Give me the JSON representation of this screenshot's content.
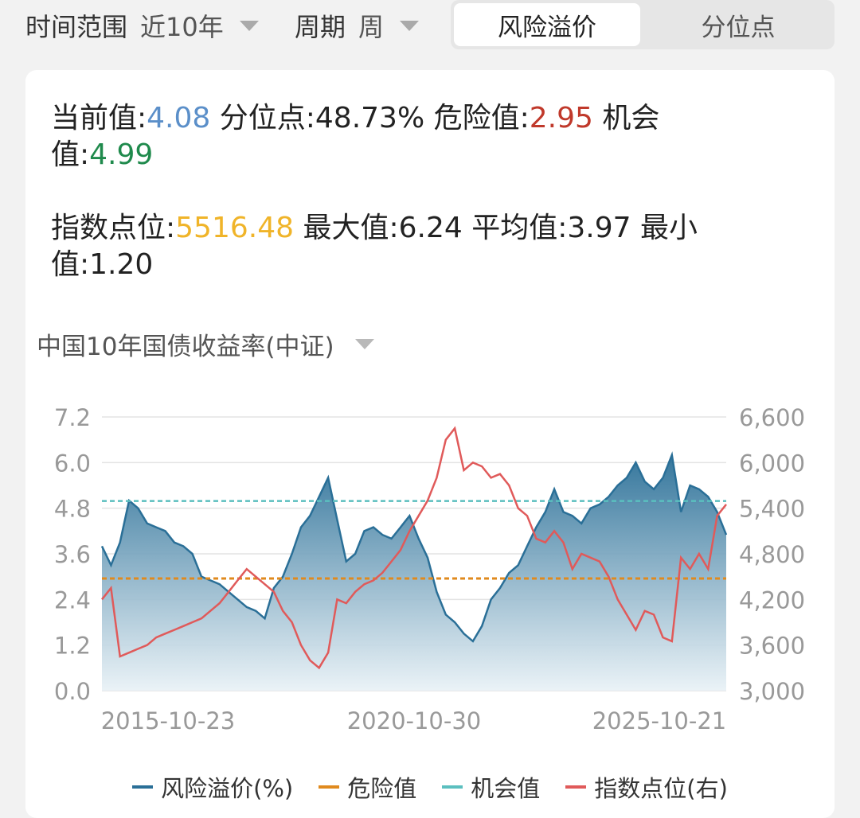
{
  "filters": {
    "time_range": {
      "label": "时间范围",
      "value": "近10年"
    },
    "period": {
      "label": "周期",
      "value": "周"
    }
  },
  "segmented": {
    "options": [
      "风险溢价",
      "分位点"
    ],
    "active": "风险溢价"
  },
  "stats": {
    "current": {
      "label": "当前值:",
      "value": "4.08"
    },
    "percentile": {
      "label": "分位点:",
      "value": "48.73%"
    },
    "danger": {
      "label": "危险值:",
      "value": "2.95"
    },
    "opportunity": {
      "label": "机会值:",
      "value": "4.99"
    },
    "index": {
      "label": "指数点位:",
      "value": "5516.48"
    },
    "max": {
      "label": "最大值:",
      "value": "6.24"
    },
    "avg": {
      "label": "平均值:",
      "value": "3.97"
    },
    "min": {
      "label": "最小值:",
      "value": "1.20"
    }
  },
  "indicator_selector": {
    "value": "中国10年国债收益率(中证)"
  },
  "colors": {
    "premium": "#2a6f97",
    "danger": "#e08a1e",
    "opportunity": "#5bbfbf",
    "index": "#e05a5a"
  },
  "chart_data": {
    "type": "area",
    "x_ticks": [
      "2015-10-23",
      "2020-10-30",
      "2025-10-21"
    ],
    "y_left_ticks": [
      "0.0",
      "1.2",
      "2.4",
      "3.6",
      "4.8",
      "6.0",
      "7.2"
    ],
    "y_right_ticks": [
      "3,000",
      "3,600",
      "4,200",
      "4,800",
      "5,400",
      "6,000",
      "6,600"
    ],
    "ylim_left": [
      0,
      7.2
    ],
    "ylim_right": [
      3000,
      6600
    ],
    "danger_line": 2.95,
    "opportunity_line": 4.99,
    "legend": [
      "风险溢价(%)",
      "危险值",
      "机会值",
      "指数点位(右)"
    ],
    "series": [
      {
        "name": "风险溢价(%)",
        "axis": "left",
        "values": [
          3.8,
          3.3,
          3.9,
          5.0,
          4.8,
          4.4,
          4.3,
          4.2,
          3.9,
          3.8,
          3.6,
          3.0,
          2.9,
          2.8,
          2.6,
          2.4,
          2.2,
          2.1,
          1.9,
          2.7,
          3.0,
          3.6,
          4.3,
          4.6,
          5.1,
          5.6,
          4.5,
          3.4,
          3.6,
          4.2,
          4.3,
          4.1,
          4.0,
          4.3,
          4.6,
          4.0,
          3.5,
          2.6,
          2.0,
          1.8,
          1.5,
          1.3,
          1.7,
          2.4,
          2.7,
          3.1,
          3.3,
          3.8,
          4.3,
          4.7,
          5.3,
          4.7,
          4.6,
          4.4,
          4.8,
          4.9,
          5.1,
          5.4,
          5.6,
          6.0,
          5.5,
          5.3,
          5.6,
          6.2,
          4.7,
          5.4,
          5.3,
          5.1,
          4.7,
          4.1
        ]
      },
      {
        "name": "指数点位(右)",
        "axis": "right",
        "values": [
          4200,
          4350,
          3450,
          3500,
          3550,
          3600,
          3700,
          3750,
          3800,
          3850,
          3900,
          3950,
          4050,
          4150,
          4300,
          4450,
          4600,
          4500,
          4400,
          4300,
          4050,
          3900,
          3600,
          3400,
          3300,
          3500,
          4200,
          4150,
          4300,
          4400,
          4450,
          4550,
          4700,
          4850,
          5100,
          5300,
          5500,
          5800,
          6300,
          6450,
          5900,
          6000,
          5950,
          5800,
          5850,
          5700,
          5400,
          5300,
          5000,
          4950,
          5100,
          4950,
          4600,
          4800,
          4750,
          4700,
          4500,
          4200,
          4000,
          3800,
          4050,
          4000,
          3700,
          3650,
          4750,
          4600,
          4800,
          4600,
          5300,
          5450
        ]
      }
    ]
  }
}
